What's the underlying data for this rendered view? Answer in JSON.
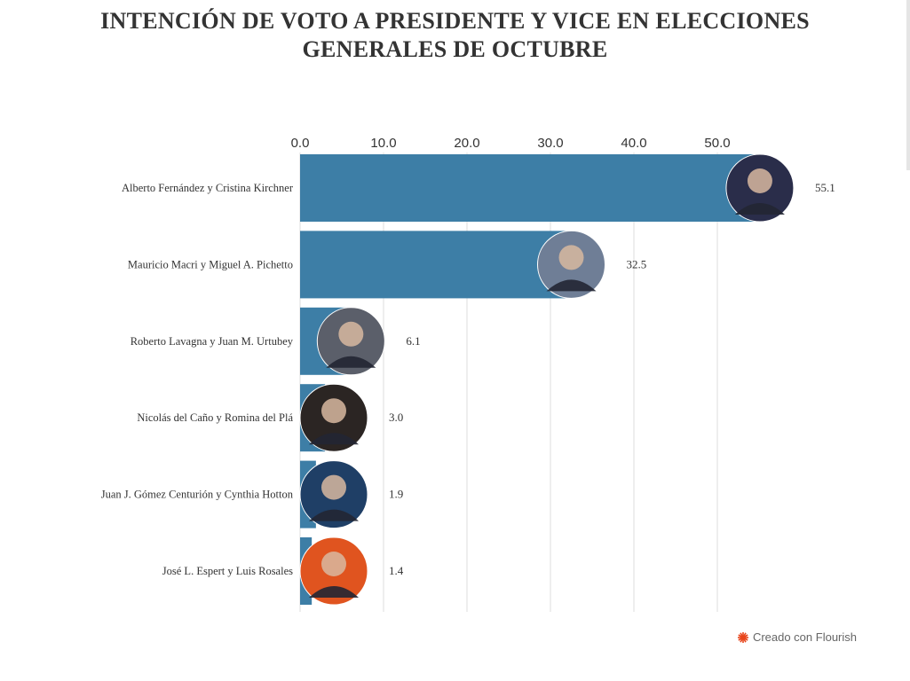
{
  "title_line1": "INTENCIÓN DE VOTO A PRESIDENTE Y VICE EN ELECCIONES",
  "title_line2": "GENERALES DE OCTUBRE",
  "footer_text": "Creado con Flourish",
  "colors": {
    "bar": "#3d7ea6",
    "grid": "#dddddd",
    "text": "#333333",
    "flourish": "#e8461c"
  },
  "chart_data": {
    "type": "bar",
    "orientation": "horizontal",
    "title": "INTENCIÓN DE VOTO A PRESIDENTE Y VICE EN ELECCIONES GENERALES DE OCTUBRE",
    "categories": [
      "Alberto Fernández y Cristina Kirchner",
      "Mauricio Macri y Miguel A. Pichetto",
      "Roberto Lavagna y Juan M. Urtubey",
      "Nicolás del Caño y Romina del Plá",
      "Juan J. Gómez Centurión y Cynthia Hotton",
      "José L. Espert y Luis Rosales"
    ],
    "values": [
      55.1,
      32.5,
      6.1,
      3.0,
      1.9,
      1.4
    ],
    "value_labels": [
      "55.1",
      "32.5",
      "6.1",
      "3.0",
      "1.9",
      "1.4"
    ],
    "xticks": [
      "0.0",
      "10.0",
      "20.0",
      "30.0",
      "40.0",
      "50.0"
    ],
    "xlim": [
      0,
      58
    ],
    "axis_position": "top",
    "grid": true,
    "portrait_colors": [
      "#2a2d4a",
      "#6f7e96",
      "#5b5f6a",
      "#2b2523",
      "#1f3f66",
      "#e0541f"
    ]
  }
}
